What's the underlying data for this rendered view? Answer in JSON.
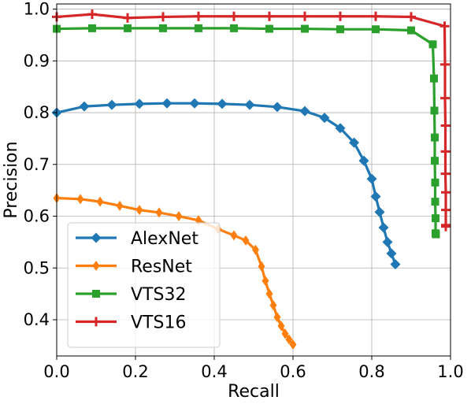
{
  "chart_data": {
    "type": "line",
    "title": "",
    "xlabel": "Recall",
    "ylabel": "Precision",
    "xlim": [
      0.0,
      1.0
    ],
    "ylim": [
      0.33,
      1.01
    ],
    "x_ticks": [
      "0.0",
      "0.2",
      "0.4",
      "0.6",
      "0.8",
      "1.0"
    ],
    "x_tick_values": [
      0.0,
      0.2,
      0.4,
      0.6,
      0.8,
      1.0
    ],
    "y_ticks": [
      "0.4",
      "0.5",
      "0.6",
      "0.7",
      "0.8",
      "0.9",
      "1.0"
    ],
    "y_tick_values": [
      0.4,
      0.5,
      0.6,
      0.7,
      0.8,
      0.9,
      1.0
    ],
    "grid": true,
    "legend_position": "bottom-left",
    "series": [
      {
        "name": "AlexNet",
        "color": "#1f77b4",
        "marker": "diamond",
        "x": [
          0.0,
          0.07,
          0.14,
          0.21,
          0.28,
          0.35,
          0.42,
          0.49,
          0.56,
          0.63,
          0.68,
          0.72,
          0.755,
          0.78,
          0.8,
          0.81,
          0.82,
          0.83,
          0.84,
          0.85,
          0.86
        ],
        "y": [
          0.8,
          0.812,
          0.815,
          0.817,
          0.818,
          0.818,
          0.817,
          0.815,
          0.811,
          0.803,
          0.79,
          0.77,
          0.742,
          0.707,
          0.672,
          0.638,
          0.608,
          0.578,
          0.55,
          0.528,
          0.507
        ]
      },
      {
        "name": "ResNet",
        "color": "#ff7f0e",
        "marker": "thin-diamond",
        "x": [
          0.0,
          0.06,
          0.11,
          0.16,
          0.21,
          0.26,
          0.31,
          0.36,
          0.41,
          0.45,
          0.48,
          0.505,
          0.52,
          0.53,
          0.54,
          0.55,
          0.56,
          0.57,
          0.58,
          0.59,
          0.6
        ],
        "y": [
          0.635,
          0.633,
          0.628,
          0.62,
          0.612,
          0.607,
          0.6,
          0.592,
          0.575,
          0.563,
          0.553,
          0.535,
          0.503,
          0.475,
          0.45,
          0.428,
          0.405,
          0.388,
          0.373,
          0.362,
          0.352
        ]
      },
      {
        "name": "VTS32",
        "color": "#2ca02c",
        "marker": "square",
        "x": [
          0.0,
          0.09,
          0.18,
          0.27,
          0.36,
          0.45,
          0.54,
          0.63,
          0.72,
          0.81,
          0.9,
          0.955,
          0.958,
          0.959,
          0.96,
          0.96,
          0.961,
          0.961,
          0.962,
          0.962,
          0.963
        ],
        "y": [
          0.962,
          0.963,
          0.963,
          0.963,
          0.963,
          0.963,
          0.962,
          0.962,
          0.961,
          0.961,
          0.959,
          0.932,
          0.866,
          0.804,
          0.752,
          0.707,
          0.665,
          0.628,
          0.596,
          0.567,
          0.565
        ]
      },
      {
        "name": "VTS16",
        "color": "#d62728",
        "marker": "plus",
        "x": [
          0.0,
          0.09,
          0.18,
          0.27,
          0.36,
          0.45,
          0.54,
          0.63,
          0.72,
          0.81,
          0.9,
          0.985,
          0.986,
          0.986,
          0.987,
          0.987,
          0.987,
          0.988,
          0.988,
          0.988,
          0.988
        ],
        "y": [
          0.985,
          0.99,
          0.983,
          0.985,
          0.986,
          0.986,
          0.986,
          0.986,
          0.986,
          0.986,
          0.985,
          0.967,
          0.893,
          0.828,
          0.775,
          0.725,
          0.682,
          0.646,
          0.612,
          0.583,
          0.58
        ]
      }
    ]
  }
}
